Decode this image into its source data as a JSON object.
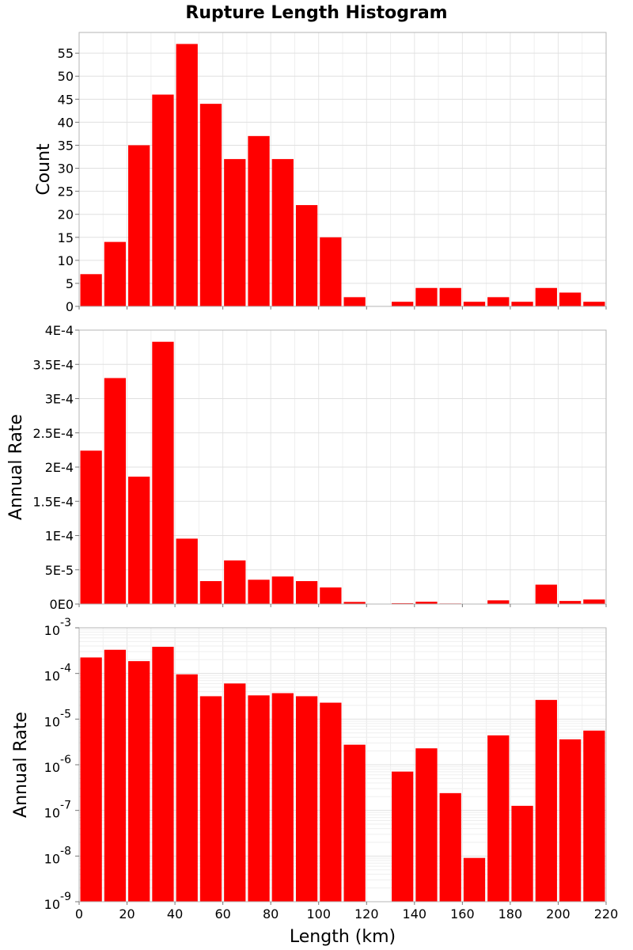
{
  "chart_data": {
    "type": "bar",
    "title": "Rupture Length Histogram",
    "xlabel": "Length (km)",
    "xlim": [
      0,
      220
    ],
    "x_ticks": [
      0,
      20,
      40,
      60,
      80,
      100,
      120,
      140,
      160,
      180,
      200,
      220
    ],
    "bin_width": 10,
    "bin_starts": [
      0,
      10,
      20,
      30,
      40,
      50,
      60,
      70,
      80,
      90,
      100,
      110,
      120,
      130,
      140,
      150,
      160,
      170,
      180,
      190,
      200,
      210
    ],
    "bar_color": "#ff0000",
    "grid": true,
    "panels": [
      {
        "ylabel": "Count",
        "scale": "linear",
        "ylim": [
          0,
          59.5
        ],
        "y_ticks": [
          {
            "value": 0,
            "label": "0"
          },
          {
            "value": 5,
            "label": "5"
          },
          {
            "value": 10,
            "label": "10"
          },
          {
            "value": 15,
            "label": "15"
          },
          {
            "value": 20,
            "label": "20"
          },
          {
            "value": 25,
            "label": "25"
          },
          {
            "value": 30,
            "label": "30"
          },
          {
            "value": 35,
            "label": "35"
          },
          {
            "value": 40,
            "label": "40"
          },
          {
            "value": 45,
            "label": "45"
          },
          {
            "value": 50,
            "label": "50"
          },
          {
            "value": 55,
            "label": "55"
          }
        ],
        "values": [
          7,
          14,
          35,
          46,
          57,
          44,
          32,
          37,
          32,
          22,
          15,
          2,
          0,
          1,
          4,
          4,
          1,
          2,
          1,
          4,
          3,
          1
        ]
      },
      {
        "ylabel": "Annual Rate",
        "scale": "linear",
        "ylim": [
          0,
          0.0004
        ],
        "y_ticks": [
          {
            "value": 0,
            "label": "0E0"
          },
          {
            "value": 5e-05,
            "label": "5E-5"
          },
          {
            "value": 0.0001,
            "label": "1E-4"
          },
          {
            "value": 0.00015,
            "label": "1.5E-4"
          },
          {
            "value": 0.0002,
            "label": "2E-4"
          },
          {
            "value": 0.00025,
            "label": "2.5E-4"
          },
          {
            "value": 0.0003,
            "label": "3E-4"
          },
          {
            "value": 0.00035,
            "label": "3.5E-4"
          },
          {
            "value": 0.0004,
            "label": "4E-4"
          }
        ],
        "values": [
          0.000224,
          0.00033,
          0.000186,
          0.000383,
          9.55e-05,
          3.35e-05,
          6.37e-05,
          3.55e-05,
          4.02e-05,
          3.35e-05,
          2.42e-05,
          3.1e-06,
          0,
          1.2e-06,
          3.4e-06,
          8e-07,
          2e-07,
          5.4e-06,
          0,
          2.83e-05,
          4.5e-06,
          6.6e-06
        ]
      },
      {
        "ylabel": "Annual Rate",
        "scale": "log",
        "ylim": [
          1e-09,
          0.001
        ],
        "y_ticks": [
          {
            "value": 1e-09,
            "base": "10",
            "exp": "-9"
          },
          {
            "value": 1e-08,
            "base": "10",
            "exp": "-8"
          },
          {
            "value": 1e-07,
            "base": "10",
            "exp": "-7"
          },
          {
            "value": 1e-06,
            "base": "10",
            "exp": "-6"
          },
          {
            "value": 1e-05,
            "base": "10",
            "exp": "-5"
          },
          {
            "value": 0.0001,
            "base": "10",
            "exp": "-4"
          },
          {
            "value": 0.001,
            "base": "10",
            "exp": "-3"
          }
        ],
        "values": [
          0.000224,
          0.00033,
          0.000186,
          0.000383,
          9.55e-05,
          3.17e-05,
          6.03e-05,
          3.31e-05,
          3.7e-05,
          3.17e-05,
          2.29e-05,
          2.75e-06,
          0,
          7.08e-07,
          2.29e-06,
          2.39e-07,
          9.1e-09,
          4.4e-06,
          1.26e-07,
          2.63e-05,
          3.6e-06,
          5.6e-06
        ]
      }
    ]
  }
}
